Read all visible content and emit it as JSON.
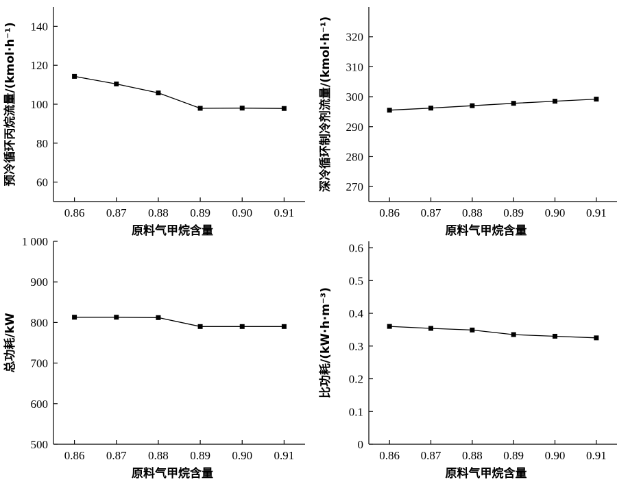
{
  "chart_data": [
    {
      "type": "line",
      "xlabel": "原料气甲烷含量",
      "ylabel": "预冷循环丙烷流量/(kmol·h⁻¹)",
      "x": [
        0.86,
        0.87,
        0.88,
        0.89,
        0.9,
        0.91
      ],
      "x_tick_labels": [
        "0.86",
        "0.87",
        "0.88",
        "0.89",
        "0.90",
        "0.91"
      ],
      "xlim": [
        0.855,
        0.915
      ],
      "ylim": [
        50,
        150
      ],
      "yticks": [
        60,
        80,
        100,
        120,
        140
      ],
      "y_tick_labels": [
        "60",
        "80",
        "100",
        "120",
        "140"
      ],
      "series": [
        {
          "values": [
            114.3,
            110.4,
            105.8,
            97.9,
            98.0,
            97.8
          ]
        }
      ]
    },
    {
      "type": "line",
      "xlabel": "原料气甲烷含量",
      "ylabel": "深冷循环制冷剂流量/(kmol·h⁻¹)",
      "x": [
        0.86,
        0.87,
        0.88,
        0.89,
        0.9,
        0.91
      ],
      "x_tick_labels": [
        "0.86",
        "0.87",
        "0.88",
        "0.89",
        "0.90",
        "0.91"
      ],
      "xlim": [
        0.855,
        0.915
      ],
      "ylim": [
        265,
        330
      ],
      "yticks": [
        270,
        280,
        290,
        300,
        310,
        320
      ],
      "y_tick_labels": [
        "270",
        "280",
        "290",
        "300",
        "310",
        "320"
      ],
      "series": [
        {
          "values": [
            295.5,
            296.2,
            297.0,
            297.8,
            298.5,
            299.2
          ]
        }
      ]
    },
    {
      "type": "line",
      "xlabel": "原料气甲烷含量",
      "ylabel": "总功耗/kW",
      "x": [
        0.86,
        0.87,
        0.88,
        0.89,
        0.9,
        0.91
      ],
      "x_tick_labels": [
        "0.86",
        "0.87",
        "0.88",
        "0.89",
        "0.90",
        "0.91"
      ],
      "xlim": [
        0.855,
        0.915
      ],
      "ylim": [
        500,
        1000
      ],
      "yticks": [
        500,
        600,
        700,
        800,
        900,
        1000
      ],
      "y_tick_labels": [
        "500",
        "600",
        "700",
        "800",
        "900",
        "1 000"
      ],
      "series": [
        {
          "values": [
            813,
            813,
            812,
            790,
            790,
            790
          ]
        }
      ]
    },
    {
      "type": "line",
      "xlabel": "原料气甲烷含量",
      "ylabel": "比功耗/(kW·h·m⁻³)",
      "x": [
        0.86,
        0.87,
        0.88,
        0.89,
        0.9,
        0.91
      ],
      "x_tick_labels": [
        "0.86",
        "0.87",
        "0.88",
        "0.89",
        "0.90",
        "0.91"
      ],
      "xlim": [
        0.855,
        0.915
      ],
      "ylim": [
        0,
        0.62
      ],
      "yticks": [
        0,
        0.1,
        0.2,
        0.3,
        0.4,
        0.5,
        0.6
      ],
      "y_tick_labels": [
        "0",
        "0.1",
        "0.2",
        "0.3",
        "0.4",
        "0.5",
        "0.6"
      ],
      "series": [
        {
          "values": [
            0.36,
            0.354,
            0.349,
            0.335,
            0.33,
            0.325
          ]
        }
      ]
    }
  ]
}
